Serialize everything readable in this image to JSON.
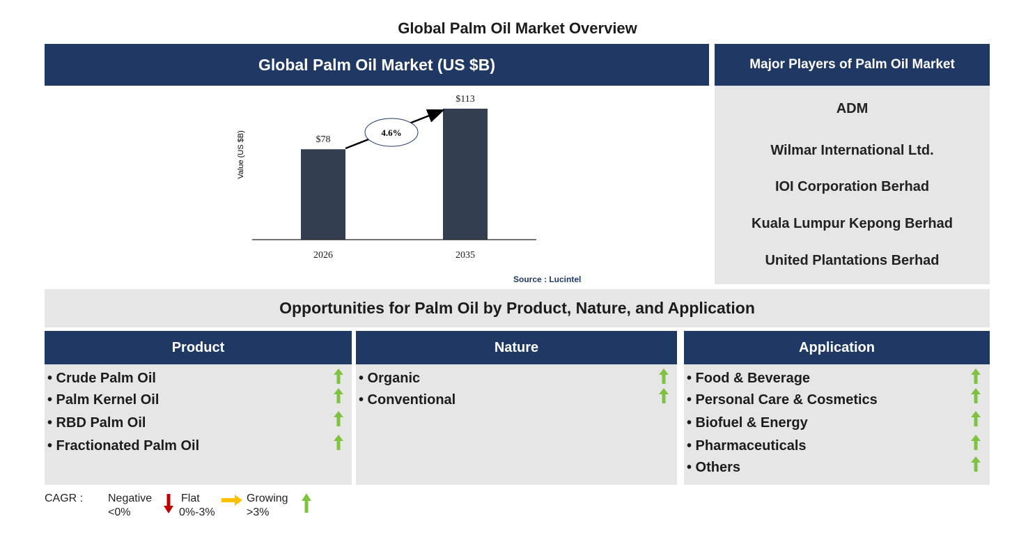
{
  "page_title": "Global Palm Oil Market Overview",
  "chart_panel": {
    "header": "Global Palm Oil Market (US $B)"
  },
  "chart_data": {
    "type": "bar",
    "title": "Global Palm Oil Market (US $B)",
    "categories": [
      "2026",
      "2035"
    ],
    "values": [
      78,
      113
    ],
    "value_labels": [
      "$78",
      "$113"
    ],
    "ylabel": "Value (US $B)",
    "xlabel": "",
    "ylim": [
      0,
      113
    ],
    "grid": false,
    "legend": "none",
    "annotation": {
      "text": "4.6%",
      "meaning": "CAGR"
    },
    "bar_color": "#333f50",
    "source": "Source : Lucintel"
  },
  "players": {
    "header": "Major Players of Palm Oil Market",
    "items": [
      "ADM",
      "Wilmar International Ltd.",
      "IOI Corporation Berhad",
      "Kuala Lumpur Kepong Berhad",
      "United Plantations Berhad"
    ]
  },
  "opportunities": {
    "title": "Opportunities for Palm Oil by Product, Nature, and Application",
    "segments": [
      {
        "header": "Product",
        "items": [
          "• Crude Palm Oil",
          "• Palm Kernel Oil",
          "• RBD Palm Oil",
          "• Fractionated Palm Oil"
        ],
        "trend": "growing"
      },
      {
        "header": "Nature",
        "items": [
          "• Organic",
          "• Conventional"
        ],
        "trend": "growing"
      },
      {
        "header": "Application",
        "items": [
          "• Food & Beverage",
          "• Personal Care & Cosmetics",
          "• Biofuel & Energy",
          "• Pharmaceuticals",
          "• Others"
        ],
        "trend": "growing"
      }
    ]
  },
  "legend": {
    "cagr_label": "CAGR  :",
    "negative": {
      "label": "Negative",
      "range": "<0%",
      "icon": "red-down-arrow-icon",
      "color": "#c00000"
    },
    "flat": {
      "label": "Flat",
      "range": "0%-3%",
      "icon": "yellow-right-arrow-icon",
      "color": "#ffc000"
    },
    "growing": {
      "label": "Growing",
      "range": ">3%",
      "icon": "green-up-arrow-icon",
      "color": "#7fc241"
    }
  },
  "colors": {
    "header_band": "#1f3864",
    "panel_grey": "#e6e6e6",
    "bar": "#333f50"
  }
}
